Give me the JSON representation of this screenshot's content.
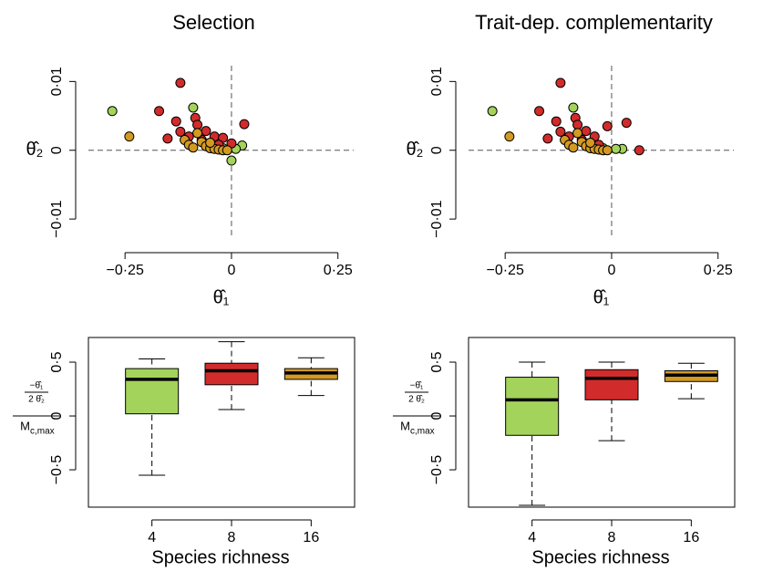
{
  "chart_data": [
    {
      "type": "scatter",
      "title": "Selection",
      "xlabel": "θ̂₁",
      "ylabel": "θ̂₂",
      "xlim": [
        -0.336,
        0.287
      ],
      "ylim": [
        -0.0129,
        0.0123
      ],
      "xticks": [
        {
          "value": -0.25,
          "label": "−0·25"
        },
        0,
        {
          "value": 0.25,
          "label": "0·25"
        }
      ],
      "yticks": [
        {
          "value": -0.01,
          "label": "−0·01"
        },
        0,
        {
          "value": 0.01,
          "label": "0·01"
        }
      ],
      "hline": 0,
      "vline": 0,
      "series": [
        {
          "color": "#a3d35b",
          "x": [
            -0.28,
            -0.09,
            0.0,
            0.025,
            -0.05,
            -0.02,
            0.01
          ],
          "values": [
            0.0057,
            0.0062,
            -0.0015,
            0.0007,
            0.001,
            0.0003,
            0.0002
          ]
        },
        {
          "color": "#d22b2b",
          "x": [
            -0.12,
            -0.17,
            -0.13,
            -0.085,
            0.03,
            -0.15,
            -0.12,
            -0.08,
            -0.06,
            -0.04,
            -0.02,
            0.0,
            -0.1,
            -0.07,
            -0.03
          ],
          "values": [
            0.0098,
            0.0057,
            0.0042,
            0.0047,
            0.0038,
            0.0017,
            0.0027,
            0.0037,
            0.0028,
            0.002,
            0.0018,
            0.001,
            0.002,
            0.0015,
            0.0008
          ]
        },
        {
          "color": "#d39a22",
          "x": [
            -0.24,
            -0.11,
            -0.1,
            -0.08,
            -0.07,
            -0.06,
            -0.05,
            -0.04,
            -0.03,
            -0.02,
            -0.01,
            -0.09,
            -0.05
          ],
          "values": [
            0.002,
            0.0015,
            0.0008,
            0.0025,
            0.0012,
            0.0006,
            0.0003,
            0.0002,
            0.0001,
            0.0,
            0.0,
            0.0004,
            0.0011
          ]
        }
      ]
    },
    {
      "type": "scatter",
      "title": "Trait-dep. complementarity",
      "xlabel": "θ̂₁",
      "ylabel": "θ̂₂",
      "xlim": [
        -0.336,
        0.287
      ],
      "ylim": [
        -0.0129,
        0.0123
      ],
      "xticks": [
        {
          "value": -0.25,
          "label": "−0·25"
        },
        0,
        {
          "value": 0.25,
          "label": "0·25"
        }
      ],
      "yticks": [
        {
          "value": -0.01,
          "label": "−0·01"
        },
        0,
        {
          "value": 0.01,
          "label": "0·01"
        }
      ],
      "hline": 0,
      "vline": 0,
      "series": [
        {
          "color": "#a3d35b",
          "x": [
            -0.28,
            -0.09,
            0.025,
            -0.05,
            -0.02,
            0.01
          ],
          "values": [
            0.0057,
            0.0062,
            0.0002,
            0.001,
            0.0003,
            0.0002
          ]
        },
        {
          "color": "#d22b2b",
          "x": [
            -0.12,
            -0.17,
            -0.13,
            -0.085,
            0.035,
            -0.15,
            -0.12,
            -0.08,
            -0.06,
            -0.04,
            -0.01,
            0.065,
            -0.1,
            -0.07,
            -0.03
          ],
          "values": [
            0.0098,
            0.0057,
            0.0042,
            0.0047,
            0.004,
            0.0017,
            0.0027,
            0.0037,
            0.0028,
            0.002,
            0.0035,
            0.0,
            0.002,
            0.0015,
            0.0008
          ]
        },
        {
          "color": "#d39a22",
          "x": [
            -0.24,
            -0.11,
            -0.1,
            -0.08,
            -0.07,
            -0.06,
            -0.05,
            -0.04,
            -0.03,
            -0.02,
            -0.01,
            -0.09,
            -0.05
          ],
          "values": [
            0.002,
            0.0015,
            0.0008,
            0.0025,
            0.0012,
            0.0006,
            0.0003,
            0.0002,
            0.0001,
            0.0,
            0.0,
            0.0004,
            0.0011
          ]
        }
      ]
    },
    {
      "type": "box",
      "xlabel": "Species richness",
      "ylabel": {
        "numerator": "−θ̂₁",
        "inner_denominator": "2 θ̂₂",
        "denominator": "M",
        "denominator_subscript": "c,max"
      },
      "categories": [
        "4",
        "8",
        "16"
      ],
      "ylim": [
        -0.847,
        0.729
      ],
      "yticks": [
        {
          "value": -0.5,
          "label": "−0·5"
        },
        0,
        {
          "value": 0.5,
          "label": "0·5"
        }
      ],
      "boxes": [
        {
          "color": "#a3d35b",
          "low": -0.55,
          "q1": 0.02,
          "median": 0.34,
          "q3": 0.44,
          "high": 0.53
        },
        {
          "color": "#d22b2b",
          "low": 0.06,
          "q1": 0.29,
          "median": 0.42,
          "q3": 0.49,
          "high": 0.69
        },
        {
          "color": "#d39a22",
          "low": 0.19,
          "q1": 0.34,
          "median": 0.4,
          "q3": 0.44,
          "high": 0.54
        }
      ]
    },
    {
      "type": "box",
      "xlabel": "Species richness",
      "ylabel": {
        "numerator": "−θ̂₁",
        "inner_denominator": "2 θ̂₂",
        "denominator": "M",
        "denominator_subscript": "c,max"
      },
      "categories": [
        "4",
        "8",
        "16"
      ],
      "ylim": [
        -0.847,
        0.729
      ],
      "yticks": [
        {
          "value": -0.5,
          "label": "−0·5"
        },
        0,
        {
          "value": 0.5,
          "label": "0·5"
        }
      ],
      "boxes": [
        {
          "color": "#a3d35b",
          "low": -0.83,
          "q1": -0.18,
          "median": 0.15,
          "q3": 0.36,
          "high": 0.5
        },
        {
          "color": "#d22b2b",
          "low": -0.23,
          "q1": 0.15,
          "median": 0.35,
          "q3": 0.43,
          "high": 0.5
        },
        {
          "color": "#d39a22",
          "low": 0.16,
          "q1": 0.32,
          "median": 0.38,
          "q3": 0.42,
          "high": 0.49
        }
      ]
    }
  ]
}
